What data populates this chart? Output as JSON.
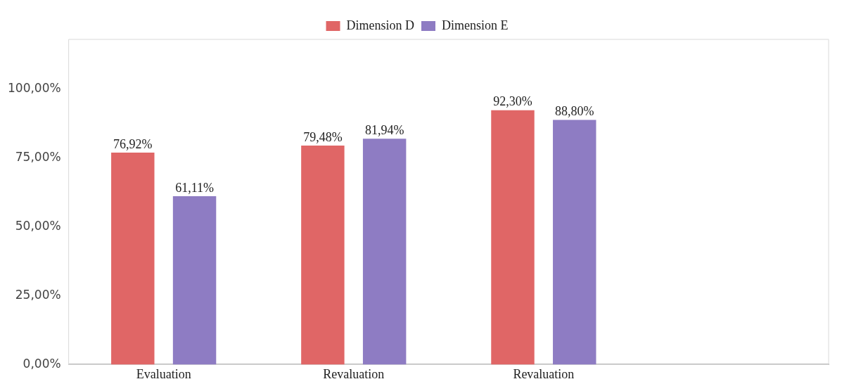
{
  "chart_data": {
    "type": "bar",
    "categories": [
      "Evaluation",
      "Revaluation",
      "Revaluation",
      null
    ],
    "series": [
      {
        "name": "Dimension D",
        "color": "#e06666",
        "values": [
          76.92,
          79.48,
          92.3,
          null
        ],
        "value_labels": [
          "76,92%",
          "79,48%",
          "92,30%",
          null
        ]
      },
      {
        "name": "Dimension E",
        "color": "#8e7cc3",
        "values": [
          61.11,
          81.94,
          88.8,
          null
        ],
        "value_labels": [
          "61,11%",
          "81,94%",
          "88,80%",
          null
        ]
      }
    ],
    "ylim": [
      0,
      118
    ],
    "yticks": [
      {
        "value": 0,
        "label": "0,00%"
      },
      {
        "value": 25,
        "label": "25,00%"
      },
      {
        "value": 50,
        "label": "50,00%"
      },
      {
        "value": 75,
        "label": "75,00%"
      },
      {
        "value": 100,
        "label": "100,00%"
      }
    ],
    "grid": false,
    "legend": "top"
  }
}
